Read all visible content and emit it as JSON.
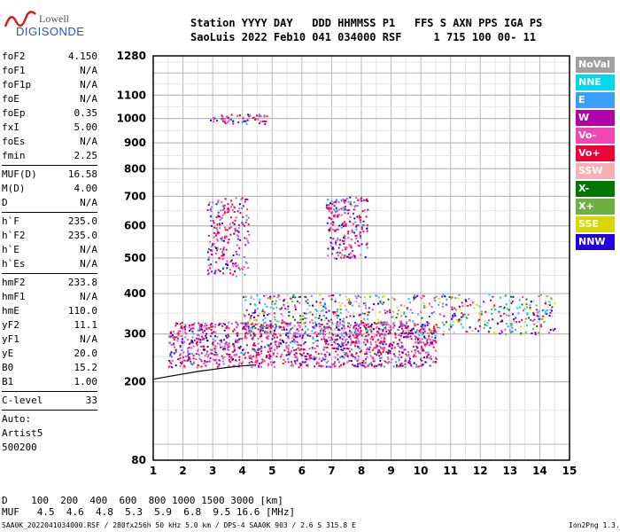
{
  "logo": {
    "top": "Lowell",
    "bottom": "DIGISONDE"
  },
  "header": {
    "line1": "Station YYYY DAY   DDD HHMMSS P1   FFS S AXN PPS IGA PS",
    "line2": "SaoLuis 2022 Feb10 041 034000 RSF     1 715 100 00- 11"
  },
  "params_group1": [
    {
      "name": "foF2",
      "value": "4.150"
    },
    {
      "name": "foF1",
      "value": "N/A"
    },
    {
      "name": "foF1p",
      "value": "N/A"
    },
    {
      "name": "foE",
      "value": "N/A"
    },
    {
      "name": "foEp",
      "value": "0.35"
    },
    {
      "name": "fxI",
      "value": "5.00"
    },
    {
      "name": "foEs",
      "value": "N/A"
    },
    {
      "name": "fmin",
      "value": "2.25"
    }
  ],
  "params_group2": [
    {
      "name": "MUF(D)",
      "value": "16.58"
    },
    {
      "name": "M(D)",
      "value": "4.00"
    },
    {
      "name": "D",
      "value": "N/A"
    }
  ],
  "params_group3": [
    {
      "name": "h`F",
      "value": "235.0"
    },
    {
      "name": "h`F2",
      "value": "235.0"
    },
    {
      "name": "h`E",
      "value": "N/A"
    },
    {
      "name": "h`Es",
      "value": "N/A"
    }
  ],
  "params_group4": [
    {
      "name": "hmF2",
      "value": "233.8"
    },
    {
      "name": "hmF1",
      "value": "N/A"
    },
    {
      "name": "hmE",
      "value": "110.0"
    },
    {
      "name": "yF2",
      "value": "11.1"
    },
    {
      "name": "yF1",
      "value": "N/A"
    },
    {
      "name": "yE",
      "value": "20.0"
    },
    {
      "name": "B0",
      "value": "15.2"
    },
    {
      "name": "B1",
      "value": "1.00"
    }
  ],
  "params_group5": [
    {
      "name": "C-level",
      "value": "33"
    }
  ],
  "extra": {
    "l1": "Auto:",
    "l2": "Artist5",
    "l3": "500200"
  },
  "legend": [
    {
      "label": "NoVal",
      "color": "#a0a0a0"
    },
    {
      "label": "NNE",
      "color": "#00d8f0"
    },
    {
      "label": "E",
      "color": "#3aa0f8"
    },
    {
      "label": "W",
      "color": "#b000a8"
    },
    {
      "label": "Vo-",
      "color": "#f048b0"
    },
    {
      "label": "Vo+",
      "color": "#f00038"
    },
    {
      "label": "SSW",
      "color": "#f8b0b0"
    },
    {
      "label": "X-",
      "color": "#007800"
    },
    {
      "label": "X+",
      "color": "#6cb040"
    },
    {
      "label": "SSE",
      "color": "#d8d800"
    },
    {
      "label": "NNW",
      "color": "#2000e0"
    }
  ],
  "bottom": {
    "d_line": "D    100  200  400  600  800 1000 1500 3000 [km]",
    "muf_line": "MUF   4.5  4.6  4.8  5.3  5.9  6.8  9.5 16.6 [MHz]"
  },
  "footer": {
    "left": "SAA0K_2022041034000.RSF / 280fx256h 50 kHz 5.0 km / DPS-4 SAA0K 903 / 2.6 S 315.8 E",
    "right": "Ion2Png 1.3.17"
  },
  "chart_data": {
    "type": "scatter",
    "xlabel": "",
    "ylabel": "",
    "xlim": [
      1,
      15
    ],
    "ylim": [
      80,
      1280
    ],
    "xticks": [
      1,
      2,
      3,
      4,
      5,
      6,
      7,
      8,
      9,
      10,
      11,
      12,
      13,
      14,
      15
    ],
    "yticks": [
      80,
      200,
      300,
      400,
      500,
      600,
      700,
      800,
      900,
      1000,
      1100,
      1280
    ],
    "scale": "square-root height axis",
    "trace_line": {
      "x": [
        1,
        1.5,
        2,
        2.5,
        3,
        3.5,
        4,
        4.4
      ],
      "y": [
        205,
        210,
        215,
        220,
        224,
        228,
        231,
        233
      ]
    },
    "ionogram_traces": [
      {
        "mode": "F2 o-trace",
        "x_range": [
          1.5,
          10.5
        ],
        "height_range": [
          230,
          330
        ]
      },
      {
        "mode": "F2 x-trace",
        "x_range": [
          4,
          14.5
        ],
        "height_range": [
          300,
          400
        ]
      },
      {
        "mode": "spread echoes",
        "x_range": [
          2.8,
          4.2
        ],
        "height_range": [
          450,
          700
        ]
      },
      {
        "mode": "spread echoes",
        "x_range": [
          6.8,
          8.2
        ],
        "height_range": [
          500,
          700
        ]
      },
      {
        "mode": "multi-hop",
        "x_range": [
          2.9,
          4.8
        ],
        "height_range": [
          980,
          1020
        ]
      }
    ]
  }
}
